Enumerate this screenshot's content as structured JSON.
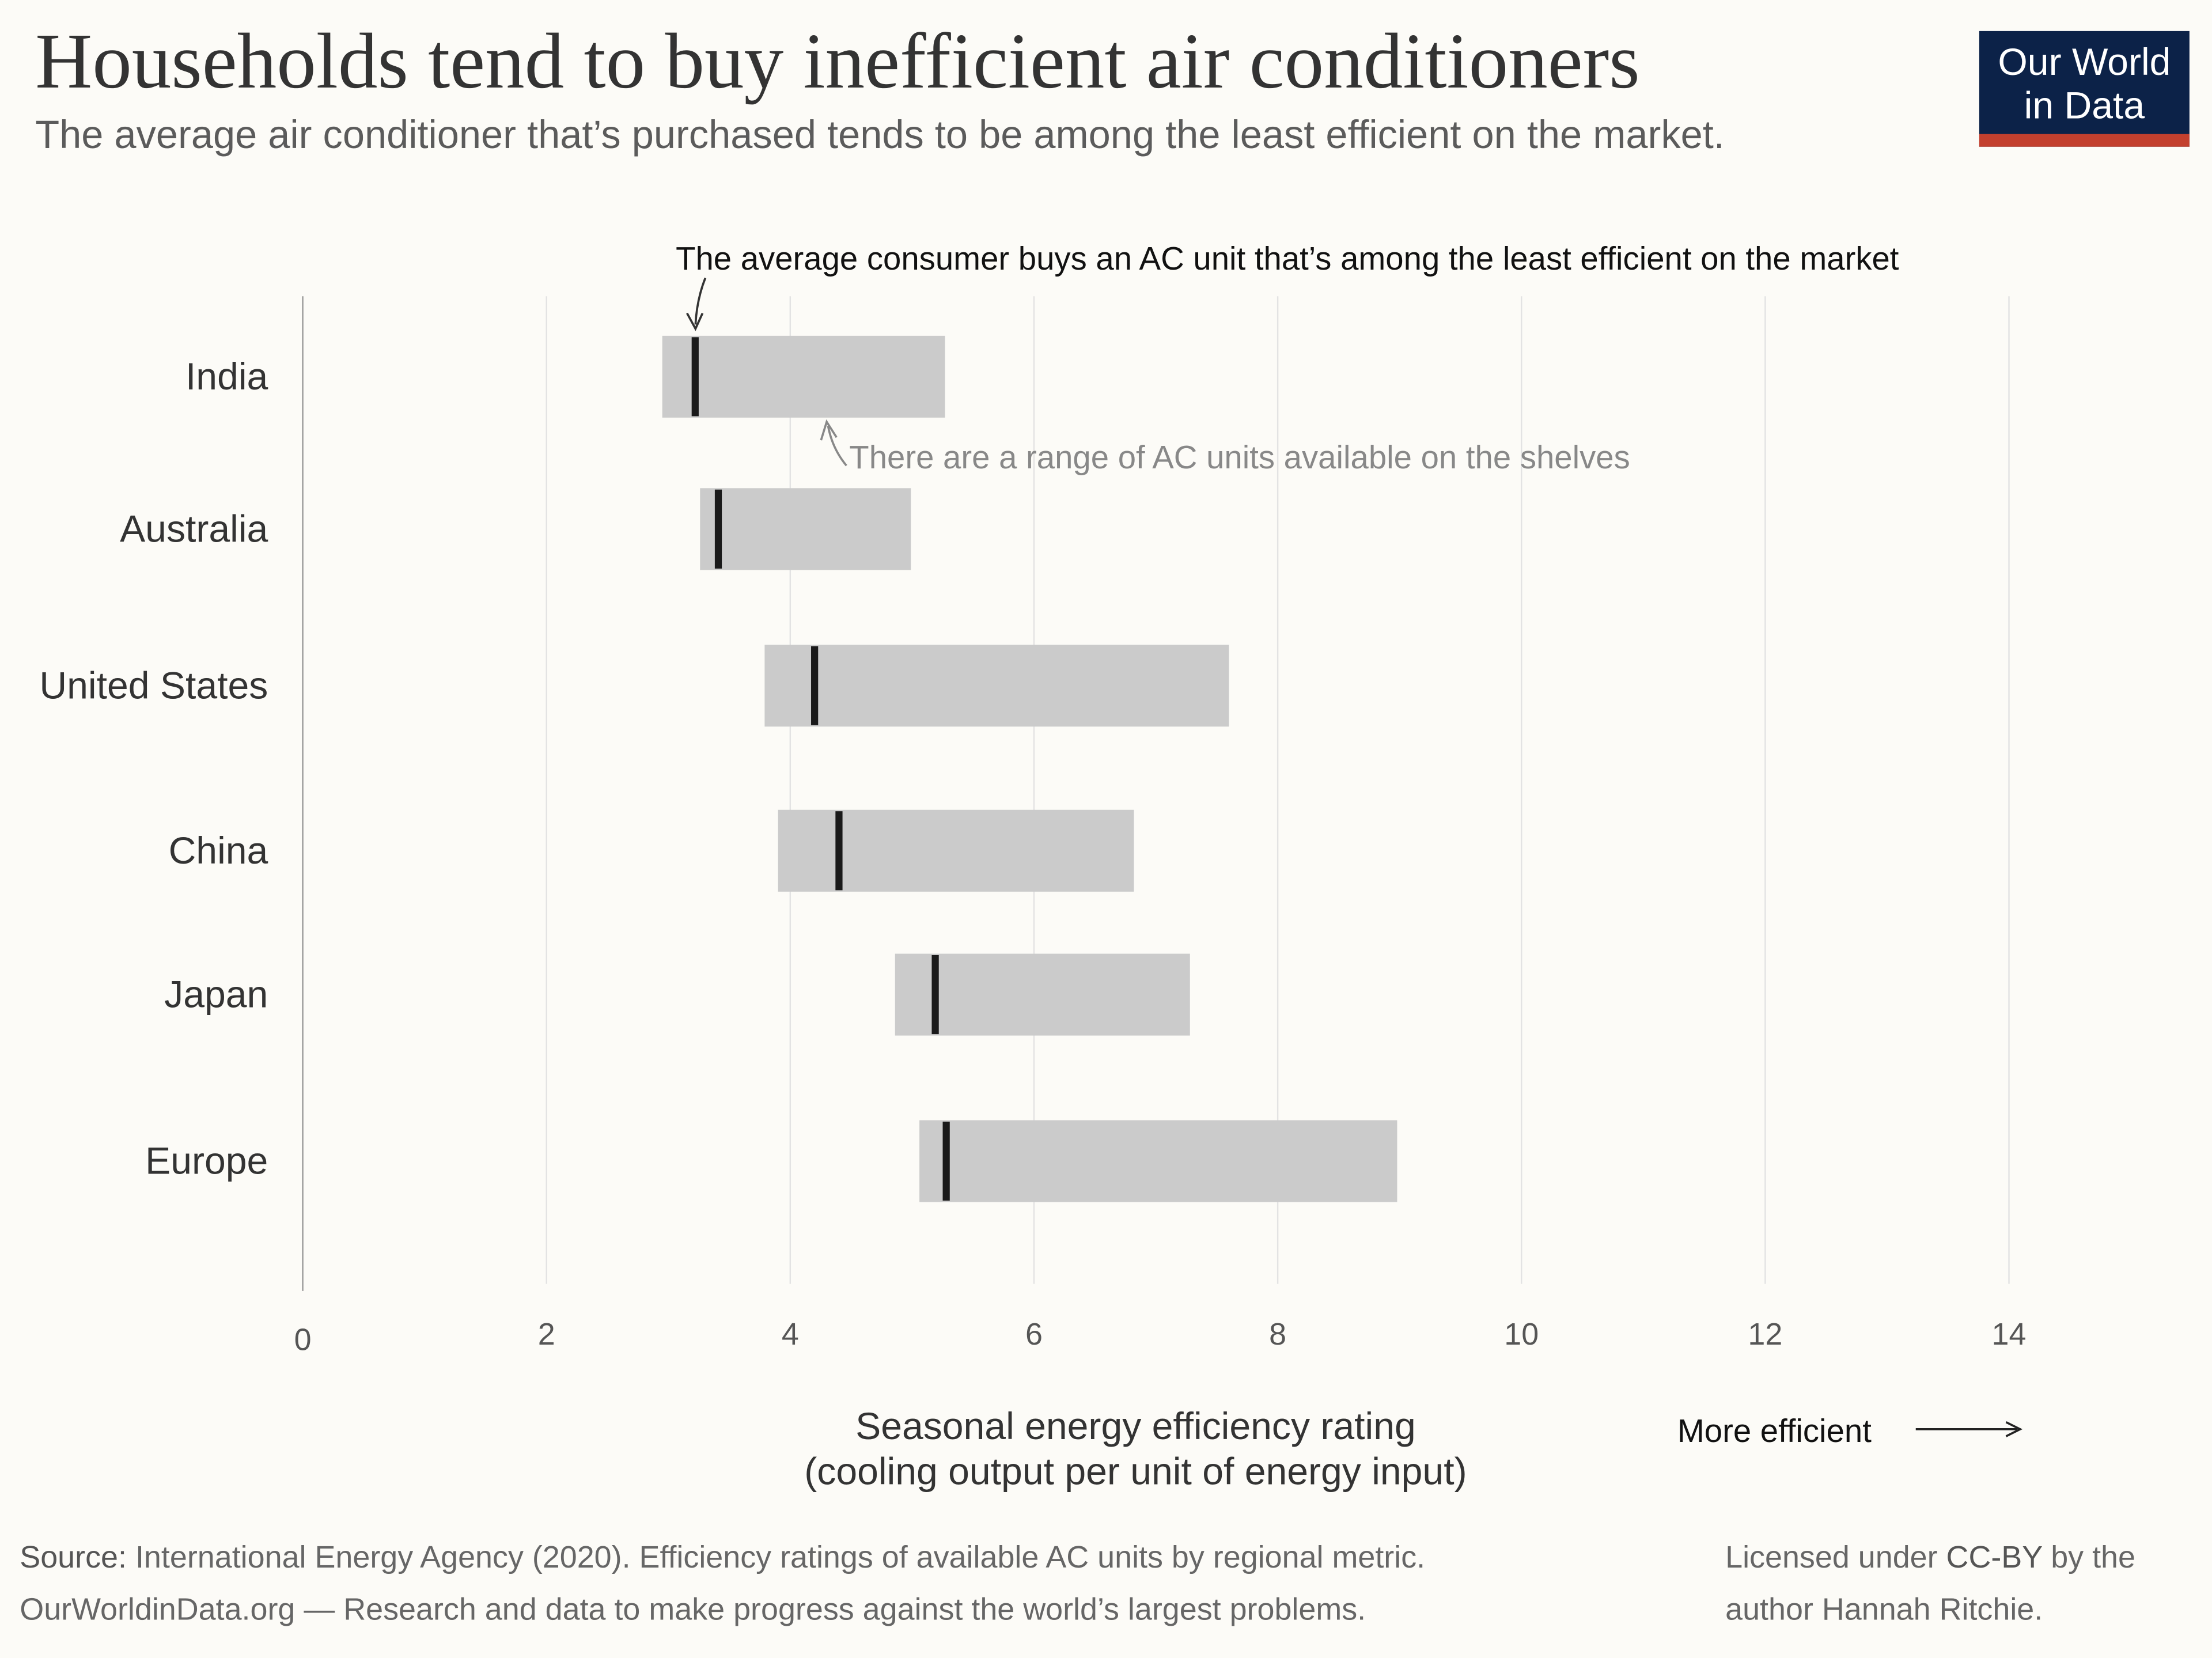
{
  "title": "Households tend to buy inefficient air conditioners",
  "subtitle": "The average air conditioner that’s purchased tends to be among the least efficient on the market.",
  "logo": {
    "line1": "Our World",
    "line2": "in Data",
    "colors": {
      "background": "#0c2248",
      "stripe": "#c3402e"
    }
  },
  "chart_data": {
    "type": "range-bar",
    "categories": [
      "India",
      "Australia",
      "United States",
      "China",
      "Japan",
      "Europe"
    ],
    "series": [
      {
        "key": "min",
        "values": [
          2.95,
          3.26,
          3.79,
          3.9,
          4.86,
          5.06
        ]
      },
      {
        "key": "max",
        "values": [
          5.27,
          4.99,
          7.6,
          6.82,
          7.28,
          8.98
        ]
      },
      {
        "key": "average",
        "values": [
          3.22,
          3.41,
          4.2,
          4.4,
          5.19,
          5.28
        ]
      }
    ],
    "xlim": [
      0,
      14
    ],
    "xticks": [
      "0",
      "2",
      "4",
      "6",
      "8",
      "10",
      "12",
      "14"
    ],
    "xlabel_line1": "Seasonal energy efficiency rating",
    "xlabel_line2": "(cooling output per unit of energy input)",
    "direction_label": "More efficient",
    "annotations": {
      "average": "The average consumer buys an AC unit that’s among the least efficient on the market",
      "range": "There are a range of AC units available on the shelves"
    },
    "grid": "vertical",
    "colors": {
      "range": "#cbcbcb",
      "average": "#1a1a1a",
      "grid": "#e3e3e3",
      "range_annotation": "#888888"
    }
  },
  "footer": {
    "source_label": "Source:",
    "source_text": " International Energy Agency (2020). Efficiency ratings of available AC units by regional metric.",
    "owid_line": "OurWorldinData.org — Research and data to make progress against the world’s largest problems.",
    "license_pre": "Licensed under ",
    "license_link": "CC-BY",
    "license_post": " by the",
    "license_line2": "author Hannah Ritchie."
  }
}
